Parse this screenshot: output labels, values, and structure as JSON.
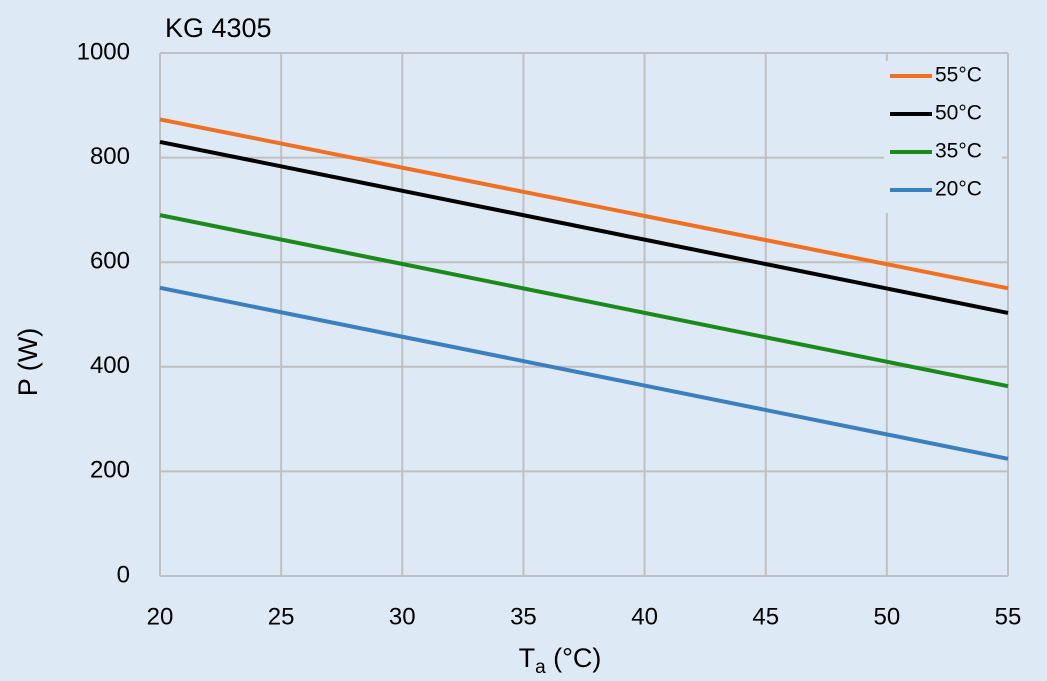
{
  "chart_data": {
    "type": "line",
    "title": "KG 4305",
    "x_label": [
      "T",
      "a",
      " (°C)"
    ],
    "y_label": "P (W)",
    "x": [
      20,
      55
    ],
    "series": [
      {
        "name": "55°C",
        "color": "#f07020",
        "values": [
          873,
          550
        ]
      },
      {
        "name": "50°C",
        "color": "#000000",
        "values": [
          830,
          503
        ]
      },
      {
        "name": "35°C",
        "color": "#1a8a1a",
        "values": [
          690,
          363
        ]
      },
      {
        "name": "20°C",
        "color": "#3a7fc1",
        "values": [
          551,
          224
        ]
      }
    ],
    "xlim": [
      20,
      55
    ],
    "xticks": [
      20,
      25,
      30,
      35,
      40,
      45,
      50,
      55
    ],
    "ylim": [
      0,
      1000
    ],
    "yticks": [
      0,
      200,
      400,
      600,
      800,
      1000
    ],
    "grid": true,
    "legend": "upper right"
  }
}
